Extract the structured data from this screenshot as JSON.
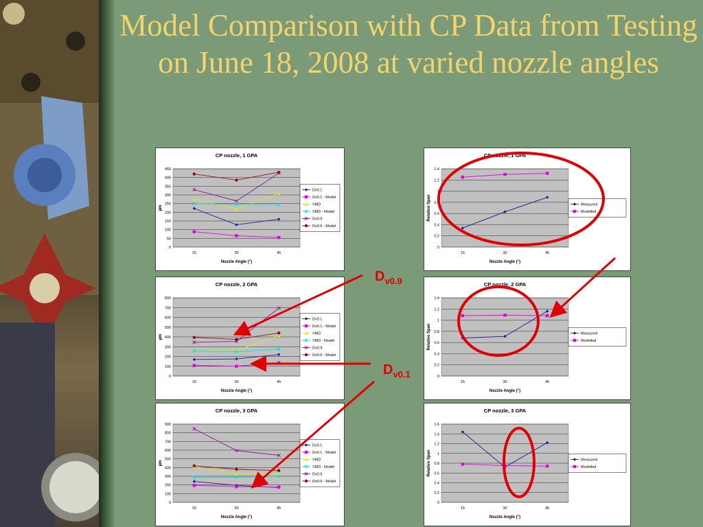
{
  "title": "Model Comparison with CP Data from Testing on June 18, 2008 at varied nozzle angles",
  "callouts": {
    "d09": "D",
    "d09_sub": "v0.9",
    "d01": "D",
    "d01_sub": "v0.1"
  },
  "colors": {
    "title": "#f3d36b",
    "annotation": "#e00000"
  },
  "chart_data": [
    {
      "type": "line",
      "title": "CP nozzle, 1 GPA",
      "xlabel": "Nozzle Angle (°)",
      "ylabel": "µm",
      "categories": [
        "15",
        "30",
        "45"
      ],
      "ylim": [
        0,
        450
      ],
      "ystep": 50,
      "legend": "right",
      "grid": true,
      "series": [
        {
          "name": "Dv0.1",
          "values": [
            222,
            128,
            160
          ],
          "color": "#1a1a8c",
          "marker": "diamond"
        },
        {
          "name": "Dv0.1 - Model",
          "values": [
            88,
            65,
            55
          ],
          "color": "#e000e0",
          "marker": "square"
        },
        {
          "name": "VMD",
          "values": [
            275,
            218,
            308
          ],
          "color": "#e8e800",
          "marker": "triangle"
        },
        {
          "name": "VMD - Model",
          "values": [
            250,
            245,
            245
          ],
          "color": "#00e0e0",
          "marker": "x"
        },
        {
          "name": "Dv0.9",
          "values": [
            330,
            265,
            425
          ],
          "color": "#8a1a8a",
          "marker": "x"
        },
        {
          "name": "Dv0.9 - Model",
          "values": [
            420,
            385,
            430
          ],
          "color": "#8a1010",
          "marker": "circle"
        }
      ]
    },
    {
      "type": "line",
      "title": "CP nozzle, 1 GPA",
      "xlabel": "Nozzle Angle (°)",
      "ylabel": "Relative Span",
      "categories": [
        "15",
        "30",
        "45"
      ],
      "ylim": [
        0,
        1.4
      ],
      "ystep": 0.2,
      "legend": "right",
      "grid": true,
      "series": [
        {
          "name": "Measured",
          "values": [
            0.34,
            0.63,
            0.89
          ],
          "color": "#1a1a8c",
          "marker": "diamond"
        },
        {
          "name": "Modelled",
          "values": [
            1.25,
            1.3,
            1.32
          ],
          "color": "#e000e0",
          "marker": "square"
        }
      ]
    },
    {
      "type": "line",
      "title": "CP nozzle, 2 GPA",
      "xlabel": "Nozzle Angle (°)",
      "ylabel": "µm",
      "categories": [
        "15",
        "30",
        "45"
      ],
      "ylim": [
        0,
        800
      ],
      "ystep": 100,
      "legend": "right",
      "grid": true,
      "series": [
        {
          "name": "Dv0.1",
          "values": [
            170,
            175,
            220
          ],
          "color": "#1a1a8c",
          "marker": "diamond"
        },
        {
          "name": "Dv0.1 - Model",
          "values": [
            108,
            100,
            135
          ],
          "color": "#e000e0",
          "marker": "square"
        },
        {
          "name": "VMD",
          "values": [
            255,
            260,
            415
          ],
          "color": "#e8e800",
          "marker": "triangle"
        },
        {
          "name": "VMD - Model",
          "values": [
            255,
            250,
            275
          ],
          "color": "#00e0e0",
          "marker": "x"
        },
        {
          "name": "Dv0.9",
          "values": [
            345,
            355,
            695
          ],
          "color": "#8a1a8a",
          "marker": "x"
        },
        {
          "name": "Dv0.9 - Model",
          "values": [
            395,
            375,
            440
          ],
          "color": "#8a1010",
          "marker": "circle"
        }
      ]
    },
    {
      "type": "line",
      "title": "CP nozzle, 2 GPA",
      "xlabel": "Nozzle Angle (°)",
      "ylabel": "Relative Span",
      "categories": [
        "15",
        "30",
        "45"
      ],
      "ylim": [
        0,
        1.4
      ],
      "ystep": 0.2,
      "legend": "right",
      "grid": true,
      "series": [
        {
          "name": "Measured",
          "values": [
            0.68,
            0.71,
            1.16
          ],
          "color": "#1a1a8c",
          "marker": "diamond"
        },
        {
          "name": "Modelled",
          "values": [
            1.08,
            1.09,
            1.08
          ],
          "color": "#e000e0",
          "marker": "square"
        }
      ]
    },
    {
      "type": "line",
      "title": "CP nozzle, 3 GPA",
      "xlabel": "Nozzle Angle (°)",
      "ylabel": "µm",
      "categories": [
        "15",
        "30",
        "45"
      ],
      "ylim": [
        0,
        900
      ],
      "ystep": 100,
      "legend": "right",
      "grid": true,
      "series": [
        {
          "name": "Dv0.1",
          "values": [
            240,
            195,
            170
          ],
          "color": "#1a1a8c",
          "marker": "diamond"
        },
        {
          "name": "Dv0.1 - Model",
          "values": [
            195,
            180,
            175
          ],
          "color": "#e000e0",
          "marker": "square"
        },
        {
          "name": "VMD",
          "values": [
            410,
            325,
            325
          ],
          "color": "#e8e800",
          "marker": "triangle"
        },
        {
          "name": "VMD - Model",
          "values": [
            285,
            290,
            300
          ],
          "color": "#00e0e0",
          "marker": "x"
        },
        {
          "name": "Dv0.9",
          "values": [
            845,
            595,
            540
          ],
          "color": "#8a1a8a",
          "marker": "x"
        },
        {
          "name": "Dv0.9 - Model",
          "values": [
            420,
            380,
            365
          ],
          "color": "#8a1010",
          "marker": "circle"
        }
      ]
    },
    {
      "type": "line",
      "title": "CP nozzle, 3 GPA",
      "xlabel": "Nozzle Angle (°)",
      "ylabel": "Relative Span",
      "categories": [
        "15",
        "30",
        "45"
      ],
      "ylim": [
        0,
        1.6
      ],
      "ystep": 0.2,
      "legend": "right",
      "grid": true,
      "series": [
        {
          "name": "Measured",
          "values": [
            1.44,
            0.72,
            1.22
          ],
          "color": "#1a1a8c",
          "marker": "diamond"
        },
        {
          "name": "Modelled",
          "values": [
            0.78,
            0.75,
            0.74
          ],
          "color": "#e000e0",
          "marker": "square"
        }
      ]
    }
  ]
}
